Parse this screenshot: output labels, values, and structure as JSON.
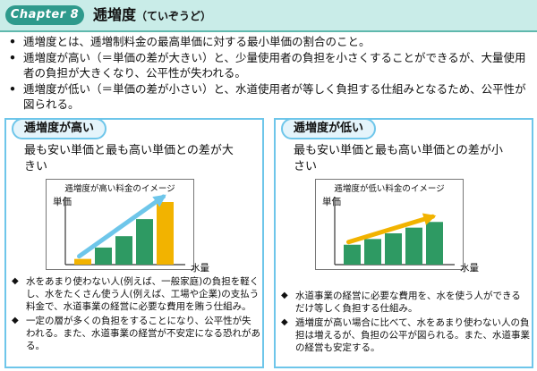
{
  "header": {
    "chapter_badge": "Chapter 8",
    "title": "逓増度",
    "title_kana": "（ていぞうど）"
  },
  "bullets": [
    "逓増度とは、逓増制料金の最高単価に対する最小単価の割合のこと。",
    "逓増度が高い（＝単価の差が大きい）と、少量使用者の負担を小さくすることができるが、大量使用者の負担が大きくなり、公平性が失われる。",
    "逓増度が低い（＝単価の差が小さい）と、水道使用者が等しく負担する仕組みとなるため、公平性が図られる。"
  ],
  "bullet_marker": "•",
  "note_marker": "◆",
  "panels": {
    "high": {
      "tab": "逓増度が高い",
      "subtitle": "最も安い単価と最も高い単価との差が大きい",
      "chart_title": "逓増度が高い料金のイメージ",
      "ylabel": "単価",
      "xlabel": "水量",
      "notes": [
        "水をあまり使わない人(例えば、一般家庭)の負担を軽くし、水をたくさん使う人(例えば、工場や企業)の支払う料金で、水道事業の経営に必要な費用を賄う仕組み。",
        "一定の層が多くの負担をすることになり、公平性が失われる。また、水道事業の経営が不安定になる恐れがある。"
      ]
    },
    "low": {
      "tab": "逓増度が低い",
      "subtitle": "最も安い単価と最も高い単価との差が小さい",
      "chart_title": "逓増度が低い料金のイメージ",
      "ylabel": "単価",
      "xlabel": "水量",
      "notes": [
        "水道事業の経営に必要な費用を、水を使う人ができるだけ等しく負担する仕組み。",
        "逓増度が高い場合に比べて、水をあまり使わない人の負担は増えるが、負担の公平が図られる。また、水道事業の経営も安定する。"
      ]
    }
  },
  "colors": {
    "header_bg": "#c9ece8",
    "badge": "#2e9a8c",
    "panel_border": "#6ec6ea",
    "bar_lowest": "#f2b300",
    "bar": "#2e9a63",
    "arrow_high": "#6ec6ea",
    "arrow_low": "#f2b300"
  },
  "chart_data": [
    {
      "type": "bar",
      "title": "逓増度が高い料金のイメージ",
      "ylabel": "単価",
      "xlabel": "水量",
      "values": [
        1,
        3,
        5,
        8,
        11
      ],
      "highlight_first_bar": true
    },
    {
      "type": "bar",
      "title": "逓増度が低い料金のイメージ",
      "ylabel": "単価",
      "xlabel": "水量",
      "values": [
        3.5,
        4.5,
        5.5,
        6.5,
        7.5
      ],
      "highlight_first_bar": false
    }
  ]
}
